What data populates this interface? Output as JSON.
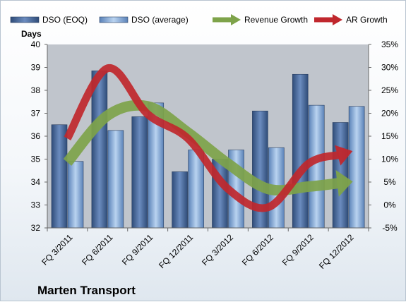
{
  "chart_data": {
    "type": "bar",
    "title": "Marten Transport",
    "ylabel": "Days",
    "categories": [
      "FQ 3/2011",
      "FQ 6/2011",
      "FQ 9/2011",
      "FQ 12/2011",
      "FQ 3/2012",
      "FQ 6/2012",
      "FQ 9/2012",
      "FQ 12/2012"
    ],
    "ylim": [
      32,
      40
    ],
    "y_ticks": [
      "32",
      "33",
      "34",
      "35",
      "36",
      "37",
      "38",
      "39",
      "40"
    ],
    "y2lim": [
      -5,
      35
    ],
    "y2_ticks": [
      "-5%",
      "0%",
      "5%",
      "10%",
      "15%",
      "20%",
      "25%",
      "30%",
      "35%"
    ],
    "grid": false,
    "legend_position": "top",
    "series": [
      {
        "name": "DSO (EOQ)",
        "type": "bar",
        "axis": "left",
        "color": "#4f6d9a",
        "values": [
          36.5,
          38.85,
          36.85,
          34.45,
          35.0,
          37.1,
          38.7,
          36.6
        ]
      },
      {
        "name": "DSO (average)",
        "type": "bar",
        "axis": "left",
        "color": "#8cb0dc",
        "values": [
          34.9,
          36.25,
          37.45,
          35.4,
          35.4,
          35.5,
          37.35,
          37.3
        ]
      },
      {
        "name": "Revenue Growth",
        "type": "line",
        "axis": "right",
        "unit": "%",
        "color": "#7ea34a",
        "values": [
          9.3,
          19.5,
          21.5,
          15.8,
          9.0,
          3.5,
          4.0,
          5.0
        ]
      },
      {
        "name": "AR Growth",
        "type": "line",
        "axis": "right",
        "unit": "%",
        "color": "#c0272d",
        "values": [
          14.5,
          29.8,
          19.8,
          14.5,
          3.5,
          -0.5,
          9.0,
          11.5
        ]
      }
    ]
  }
}
